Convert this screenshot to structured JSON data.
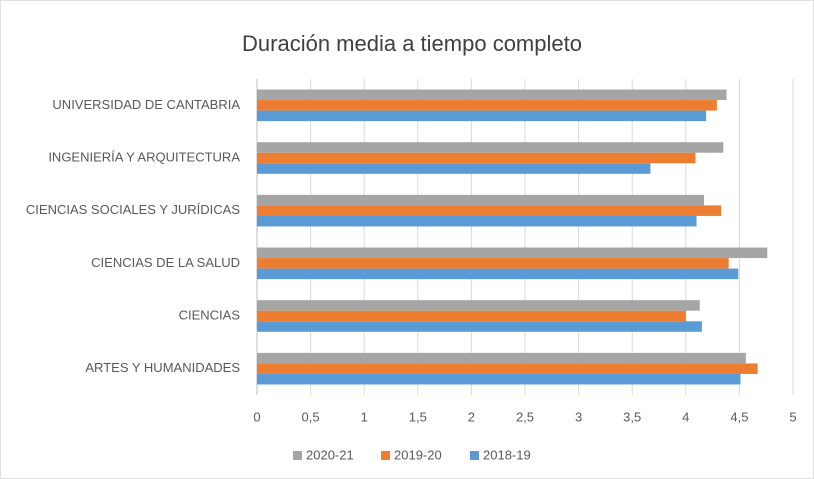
{
  "chart_data": {
    "type": "hbar",
    "title": "Duración media a tiempo completo",
    "categories": [
      "UNIVERSIDAD DE CANTABRIA",
      "INGENIERÍA Y ARQUITECTURA",
      "CIENCIAS SOCIALES Y JURÍDICAS",
      "CIENCIAS DE LA SALUD",
      "CIENCIAS",
      "ARTES Y HUMANIDADES"
    ],
    "series": [
      {
        "name": "2020-21",
        "color": "#a5a5a5",
        "values": [
          4.38,
          4.35,
          4.17,
          4.76,
          4.13,
          4.56
        ]
      },
      {
        "name": "2019-20",
        "color": "#ed7d31",
        "values": [
          4.29,
          4.09,
          4.33,
          4.4,
          4.0,
          4.67
        ]
      },
      {
        "name": "2018-19",
        "color": "#5b9bd5",
        "values": [
          4.19,
          3.67,
          4.1,
          4.49,
          4.15,
          4.51
        ]
      }
    ],
    "xlim": [
      0,
      5
    ],
    "xticks": [
      0,
      {
        "value": 0.5,
        "label": "0,5"
      },
      1,
      {
        "value": 1.5,
        "label": "1,5"
      },
      2,
      {
        "value": 2.5,
        "label": "2,5"
      },
      3,
      {
        "value": 3.5,
        "label": "3,5"
      },
      4,
      {
        "value": 4.5,
        "label": "4,5"
      },
      5
    ],
    "grid": true,
    "legend": "bottom"
  }
}
